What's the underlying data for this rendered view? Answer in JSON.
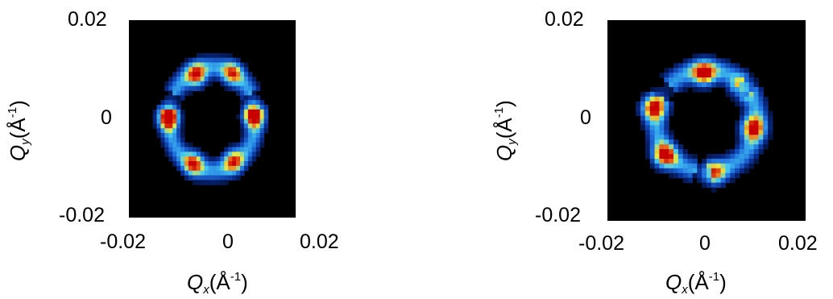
{
  "chart_data": [
    {
      "type": "heatmap",
      "panel": "left",
      "xlabel": {
        "symbol": "Q",
        "sub": "x",
        "unit_open": "(Å",
        "sup": "-1",
        "unit_close": ")"
      },
      "ylabel": {
        "symbol": "Q",
        "sub": "y",
        "unit_open": "(Å",
        "sup": "-1",
        "unit_close": ")"
      },
      "xlim": [
        -0.02,
        0.02
      ],
      "ylim": [
        -0.02,
        0.02
      ],
      "x_ticks": [
        "-0.02",
        "0",
        "0.02"
      ],
      "y_ticks": [
        "0.02",
        "0",
        "-0.02"
      ],
      "colormap": [
        "#000000",
        "#0a2a8c",
        "#1f6fe0",
        "#45c8f0",
        "#e8e840",
        "#e85a18",
        "#c80000"
      ],
      "ring": {
        "center": [
          0.0,
          0.0
        ],
        "radius": 0.0105,
        "width": 0.0042,
        "gaps_deg": [
          20,
          160
        ],
        "gap_half_width_deg": 9
      },
      "peaks": [
        {
          "qx": -0.0105,
          "qy": 0.0003,
          "intensity": 1.0
        },
        {
          "qx": 0.0098,
          "qy": 0.0008,
          "intensity": 1.0
        },
        {
          "qx": -0.0038,
          "qy": 0.0088,
          "intensity": 0.72
        },
        {
          "qx": 0.0048,
          "qy": 0.0092,
          "intensity": 0.58
        },
        {
          "qx": -0.0045,
          "qy": -0.009,
          "intensity": 0.66
        },
        {
          "qx": 0.005,
          "qy": -0.0085,
          "intensity": 0.62
        }
      ]
    },
    {
      "type": "heatmap",
      "panel": "right",
      "xlabel": {
        "symbol": "Q",
        "sub": "x",
        "unit_open": "(Å",
        "sup": "-1",
        "unit_close": ")"
      },
      "ylabel": {
        "symbol": "Q",
        "sub": "y",
        "unit_open": "(Å",
        "sup": "-1",
        "unit_close": ")"
      },
      "xlim": [
        -0.02,
        0.02
      ],
      "ylim": [
        -0.02,
        0.02
      ],
      "x_ticks": [
        "-0.02",
        "0",
        "0.02"
      ],
      "y_ticks": [
        "0.02",
        "0",
        "-0.02"
      ],
      "colormap": [
        "#000000",
        "#0a2a8c",
        "#1f6fe0",
        "#45c8f0",
        "#e8e840",
        "#e85a18",
        "#c80000"
      ],
      "ring": {
        "center": [
          0.0,
          0.0
        ],
        "radius": 0.0102,
        "width": 0.0042,
        "gaps_deg": [
          40,
          145,
          265
        ],
        "gap_half_width_deg": 8
      },
      "peaks": [
        {
          "qx": -0.0005,
          "qy": 0.0093,
          "intensity": 0.82
        },
        {
          "qx": -0.0108,
          "qy": 0.0025,
          "intensity": 0.76
        },
        {
          "qx": -0.0085,
          "qy": -0.007,
          "intensity": 0.8
        },
        {
          "qx": 0.0093,
          "qy": -0.0015,
          "intensity": 0.76
        },
        {
          "qx": 0.0015,
          "qy": -0.0105,
          "intensity": 0.55
        },
        {
          "qx": 0.0072,
          "qy": 0.0065,
          "intensity": 0.45
        }
      ]
    }
  ]
}
